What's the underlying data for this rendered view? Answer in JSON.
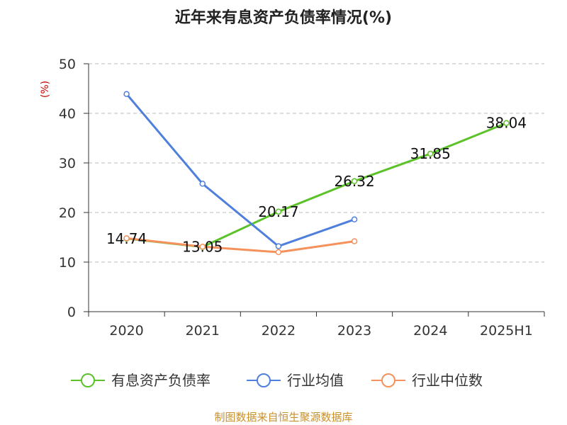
{
  "chart_data": {
    "type": "line",
    "title": "近年来有息资产负债率情况(%)",
    "ylabel": "(%)",
    "xlabel": "",
    "categories": [
      "2020",
      "2021",
      "2022",
      "2023",
      "2024",
      "2025H1"
    ],
    "ylim": [
      0,
      50
    ],
    "yticks": [
      0,
      10,
      20,
      30,
      40,
      50
    ],
    "grid": "horizontal-dashed",
    "legend_position": "bottom",
    "series": [
      {
        "name": "有息资产负债率",
        "color": "#5cc229",
        "values": [
          14.74,
          13.05,
          20.17,
          26.32,
          31.85,
          38.04
        ],
        "labels": [
          "14.74",
          "13.05",
          "20.17",
          "26.32",
          "31.85",
          "38.04"
        ],
        "show_labels": true
      },
      {
        "name": "行业均值",
        "color": "#4f7fdc",
        "values": [
          43.9,
          25.8,
          13.2,
          18.6,
          null,
          null
        ],
        "show_labels": false
      },
      {
        "name": "行业中位数",
        "color": "#f5915a",
        "values": [
          14.8,
          13.1,
          12.0,
          14.2,
          null,
          null
        ],
        "show_labels": false
      }
    ],
    "source": "制图数据来自恒生聚源数据库"
  }
}
